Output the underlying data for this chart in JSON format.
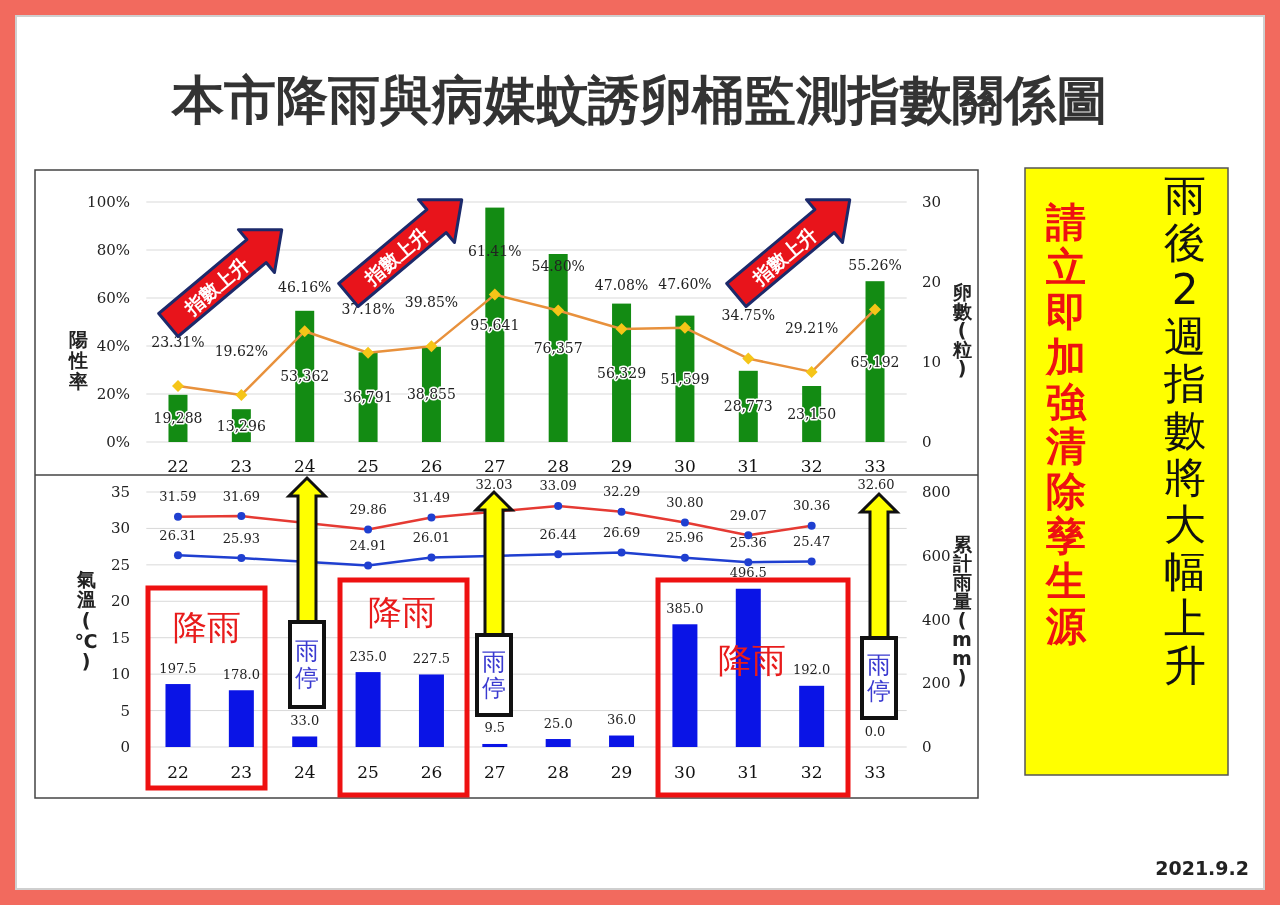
{
  "chart_data": [
    {
      "type": "bar",
      "title": "本市降雨與病媒蚊誘卵桶監測指數關係圖",
      "categories": [
        "22",
        "23",
        "24",
        "25",
        "26",
        "27",
        "28",
        "29",
        "30",
        "31",
        "32",
        "33"
      ],
      "ylabel": "陽性率",
      "y2label": "卵數(粒)",
      "ylim": [
        0,
        100
      ],
      "yticks": [
        {
          "value": 0,
          "label": "0%"
        },
        {
          "value": 20,
          "label": "20%"
        },
        {
          "value": 40,
          "label": "40%"
        },
        {
          "value": 60,
          "label": "60%"
        },
        {
          "value": 80,
          "label": "80%"
        },
        {
          "value": 100,
          "label": "100%"
        }
      ],
      "y2lim": [
        0,
        30
      ],
      "y2ticks": [
        0,
        10,
        20,
        30
      ],
      "grid": "y",
      "series": [
        {
          "type": "bar",
          "axis": "y2",
          "color": "#138b13",
          "values": [
            5.9,
            4.1,
            16.4,
            11.2,
            11.9,
            29.3,
            23.5,
            17.3,
            15.8,
            8.9,
            7.0,
            20.1
          ]
        },
        {
          "type": "line",
          "color": "#e8913c",
          "marker": "diamond",
          "colors": [
            "#f5c518",
            "#f5c518",
            "#f5c518",
            "#f5c518",
            "#f5c518",
            "#f5c518",
            "#f5c518",
            "#f5c518",
            "#f5c518",
            "#f5c518",
            "#f5c518",
            "#f5c518"
          ],
          "values": [
            23.31,
            19.62,
            46.16,
            37.18,
            39.85,
            61.41,
            54.8,
            47.08,
            47.6,
            34.75,
            29.21,
            55.26
          ],
          "value_labels": [
            "23.31%",
            "19.62%",
            "46.16%",
            "37.18%",
            "39.85%",
            "61.41%",
            "54.80%",
            "47.08%",
            "47.60%",
            "34.75%",
            "29.21%",
            "55.26%"
          ]
        }
      ],
      "annotations": [
        "指數上升",
        "指數上升",
        "指數上升",
        "19,288",
        "13,296",
        "53,362",
        "36,791",
        "38,855",
        "95,641",
        "76,357",
        "56,329",
        "51,599",
        "28,773",
        "23,150",
        "65,192"
      ]
    },
    {
      "type": "line",
      "categories": [
        "22",
        "23",
        "24",
        "25",
        "26",
        "27",
        "28",
        "29",
        "30",
        "31",
        "32",
        "33"
      ],
      "ylabel": "氣溫(℃)",
      "y2label": "累計雨量(mm)",
      "ylim": [
        0,
        35
      ],
      "yticks": [
        0,
        5,
        10,
        15,
        20,
        25,
        30,
        35
      ],
      "y2lim": [
        0,
        800
      ],
      "y2ticks": [
        0,
        200,
        400,
        600,
        800
      ],
      "grid": "y",
      "marker": "circle",
      "series": [
        {
          "type": "line",
          "color": "#e53a33",
          "colors": [
            "#1f3fd0",
            "#1f3fd0",
            null,
            "#1f3fd0",
            "#1f3fd0",
            null,
            "#1f3fd0",
            "#1f3fd0",
            "#1f3fd0",
            "#1f3fd0",
            "#1f3fd0",
            null
          ],
          "values": [
            31.59,
            31.69,
            null,
            29.86,
            31.49,
            null,
            33.09,
            32.29,
            30.8,
            29.07,
            30.36,
            null
          ],
          "value_labels": [
            "31.59",
            "31.69",
            null,
            "29.86",
            "31.49",
            null,
            "33.09",
            "32.29",
            "30.80",
            "29.07",
            "30.36",
            null
          ]
        },
        {
          "type": "line",
          "color": "#1f3fd0",
          "values": [
            26.31,
            25.93,
            null,
            24.91,
            26.01,
            null,
            26.44,
            26.69,
            25.96,
            25.36,
            25.47,
            null
          ],
          "value_labels": [
            "26.31",
            "25.93",
            null,
            "24.91",
            "26.01",
            null,
            "26.44",
            "26.69",
            "25.96",
            "25.36",
            "25.47",
            null
          ]
        },
        {
          "type": "bar",
          "axis": "y2",
          "color": "#0a14e6",
          "values": [
            197.5,
            178.0,
            33.0,
            235.0,
            227.5,
            9.5,
            25.0,
            36.0,
            385.0,
            496.5,
            192.0,
            0.0
          ],
          "value_labels": [
            "197.5",
            "178.0",
            "33.0",
            "235.0",
            "227.5",
            "9.5",
            "25.0",
            "36.0",
            "385.0",
            "496.5",
            "192.0",
            "0.0"
          ]
        }
      ],
      "annotations": [
        "降雨",
        "降雨",
        "降雨",
        "雨停",
        "雨停",
        "雨停",
        "2021.9.2",
        "32.03",
        "32.60"
      ]
    },
    {
      "type": "other",
      "annotations": [
        "雨後2週指數將大幅上升",
        "請立即加強清除孳生源"
      ]
    }
  ]
}
